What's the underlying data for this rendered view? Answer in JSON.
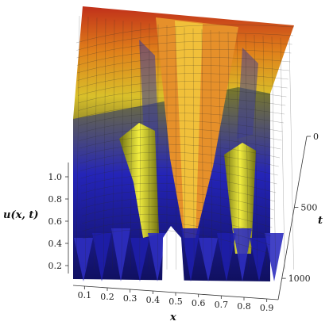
{
  "chart_data": {
    "type": "surface",
    "title": "",
    "xlabel": "x",
    "ylabel": "t",
    "zlabel": "u(x, t)",
    "x_ticks": [
      "0.1",
      "0.2",
      "0.3",
      "0.4",
      "0.5",
      "0.6",
      "0.7",
      "0.8",
      "0.9"
    ],
    "t_ticks": [
      "0",
      "500",
      "1000"
    ],
    "u_ticks": [
      "0.2",
      "0.4",
      "0.6",
      "0.8",
      "1.0"
    ],
    "xlim": [
      0.05,
      0.95
    ],
    "tlim": [
      0,
      1150
    ],
    "zlim": [
      0.1,
      1.1
    ],
    "colormap": [
      "#1a1aa8",
      "#6b6b2a",
      "#d9d02a",
      "#e0801a",
      "#c0301a"
    ],
    "peaks": {
      "back_ridges_x": [
        0.12,
        0.5,
        0.88
      ],
      "front_ridges_x": [
        0.3,
        0.5,
        0.74
      ],
      "troughs_x": [
        0.08,
        0.17,
        0.25,
        0.36,
        0.44,
        0.56,
        0.64,
        0.7,
        0.78,
        0.86,
        0.93
      ]
    }
  }
}
